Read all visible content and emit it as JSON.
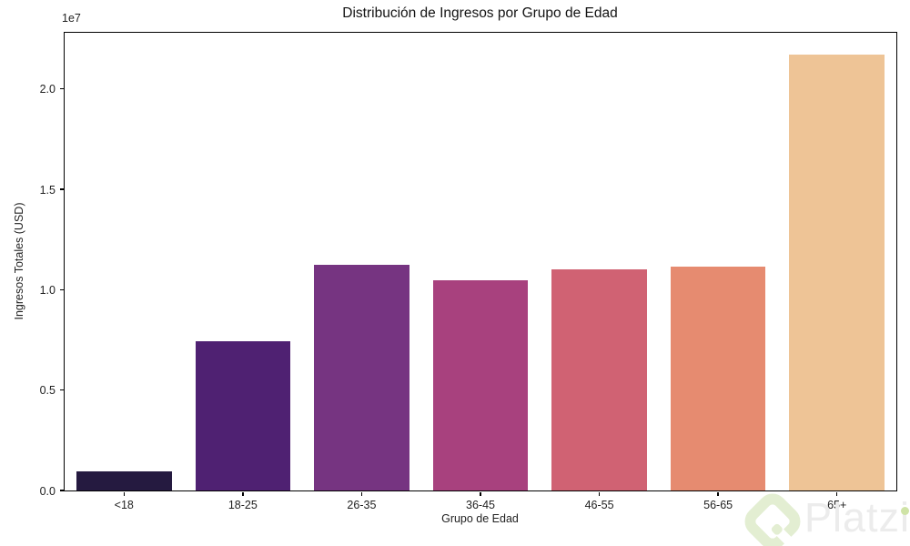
{
  "figure": {
    "title": "Distribución de Ingresos por Grupo de Edad",
    "offset_text": "1e7",
    "xlabel": "Grupo de Edad",
    "ylabel": "Ingresos Totales (USD)"
  },
  "watermark": {
    "text": "Platzi",
    "text_color": "#ececec",
    "logo_color": "#e3eed2",
    "logo_icon": "platzi-diamond-logo"
  },
  "chart_data": {
    "type": "bar",
    "title": "Distribución de Ingresos por Grupo de Edad",
    "xlabel": "Grupo de Edad",
    "ylabel": "Ingresos Totales (USD)",
    "categories": [
      "<18",
      "18-25",
      "26-35",
      "36-45",
      "46-55",
      "56-65",
      "65+"
    ],
    "values": [
      950000,
      7450000,
      11250000,
      10480000,
      11020000,
      11160000,
      21720000
    ],
    "bar_colors": [
      "#251a40",
      "#4f2172",
      "#763481",
      "#a8417e",
      "#d06273",
      "#e68b70",
      "#eec496"
    ],
    "ylim": [
      0,
      22800000
    ],
    "yticks": [
      0,
      5000000,
      10000000,
      15000000,
      20000000
    ],
    "ytick_labels": [
      "0.0",
      "0.5",
      "1.0",
      "1.5",
      "2.0"
    ],
    "offset_text": "1e7",
    "grid": false,
    "legend": false,
    "bar_width_fraction": 0.8
  }
}
